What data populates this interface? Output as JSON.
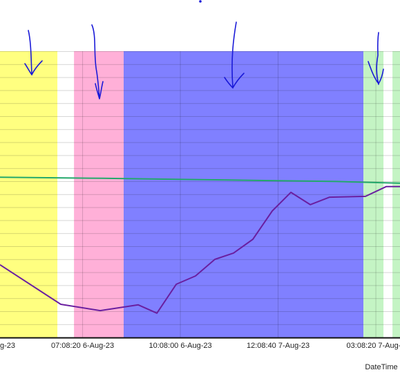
{
  "chart_data": {
    "type": "line",
    "x_label": "DateTime",
    "xlim": [
      0.155,
      4.247
    ],
    "ylim": [
      0,
      100
    ],
    "xticks": [
      {
        "value": 0,
        "label": "g-23"
      },
      {
        "value": 1,
        "label": "07:08:20 6-Aug-23"
      },
      {
        "value": 2,
        "label": "10:08:00 6-Aug-23"
      },
      {
        "value": 3,
        "label": "12:08:40 7-Aug-23"
      },
      {
        "value": 4,
        "label": "03:08:20 7-Aug-2"
      }
    ],
    "bands": [
      {
        "from": 0.155,
        "to": 0.742,
        "color": "#ffff80"
      },
      {
        "from": 0.912,
        "to": 1.42,
        "color": "#ffb0d8"
      },
      {
        "from": 1.42,
        "to": 3.873,
        "color": "#8080ff"
      },
      {
        "from": 3.873,
        "to": 4.078,
        "color": "#c4f4c4"
      },
      {
        "from": 4.17,
        "to": 4.247,
        "color": "#c4f4c4"
      }
    ],
    "series": [
      {
        "color": "#23a86b",
        "x": [
          0.155,
          1.2,
          2.5,
          3.6,
          4.247
        ],
        "values": [
          56.0,
          55.6,
          55.0,
          54.5,
          53.9
        ]
      },
      {
        "color": "#6a1fa0",
        "x": [
          0.155,
          0.777,
          1.18,
          1.569,
          1.76,
          1.958,
          2.155,
          2.353,
          2.544,
          2.742,
          2.94,
          3.131,
          3.329,
          3.527,
          3.894,
          4.106,
          4.247
        ],
        "values": [
          25.4,
          11.6,
          9.4,
          11.4,
          8.5,
          18.6,
          21.5,
          27.3,
          29.5,
          34.3,
          44.2,
          50.7,
          46.4,
          49.0,
          49.3,
          52.7,
          52.7
        ]
      }
    ]
  }
}
